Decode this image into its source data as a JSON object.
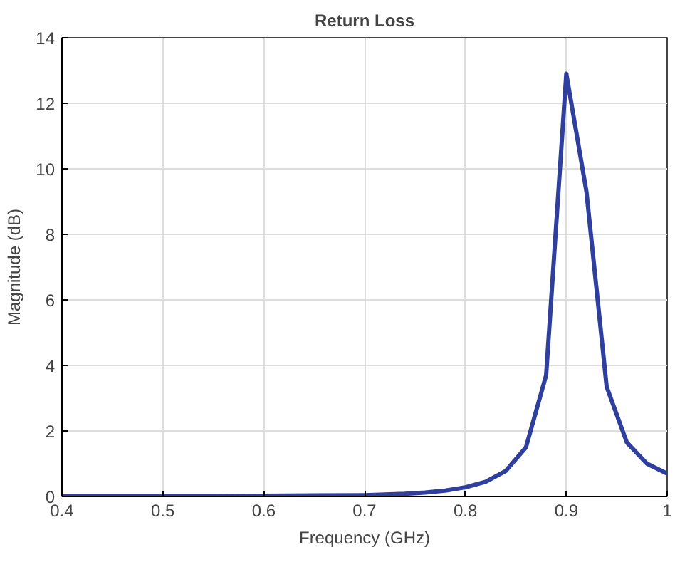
{
  "chart_data": {
    "type": "line",
    "title": "Return Loss",
    "xlabel": "Frequency (GHz)",
    "ylabel": "Magnitude (dB)",
    "x": [
      0.4,
      0.45,
      0.5,
      0.55,
      0.6,
      0.65,
      0.7,
      0.72,
      0.74,
      0.76,
      0.78,
      0.8,
      0.82,
      0.84,
      0.86,
      0.88,
      0.9,
      0.92,
      0.94,
      0.96,
      0.98,
      1.0
    ],
    "series": [
      {
        "color": "#2e3f9e",
        "values": [
          0.01,
          0.01,
          0.01,
          0.01,
          0.02,
          0.03,
          0.04,
          0.06,
          0.08,
          0.12,
          0.18,
          0.28,
          0.45,
          0.78,
          1.5,
          3.7,
          12.9,
          9.3,
          3.35,
          1.65,
          1.0,
          0.7
        ]
      }
    ],
    "xlim": [
      0.4,
      1.0
    ],
    "xticks": [
      0.4,
      0.5,
      0.6,
      0.7,
      0.8,
      0.9,
      {
        "value": 1.0,
        "label": "1"
      }
    ],
    "ylim": [
      0,
      14
    ],
    "yticks": [
      0,
      2,
      4,
      6,
      8,
      10,
      12,
      14
    ],
    "grid": true,
    "marker": "none",
    "line_style": "solid"
  }
}
